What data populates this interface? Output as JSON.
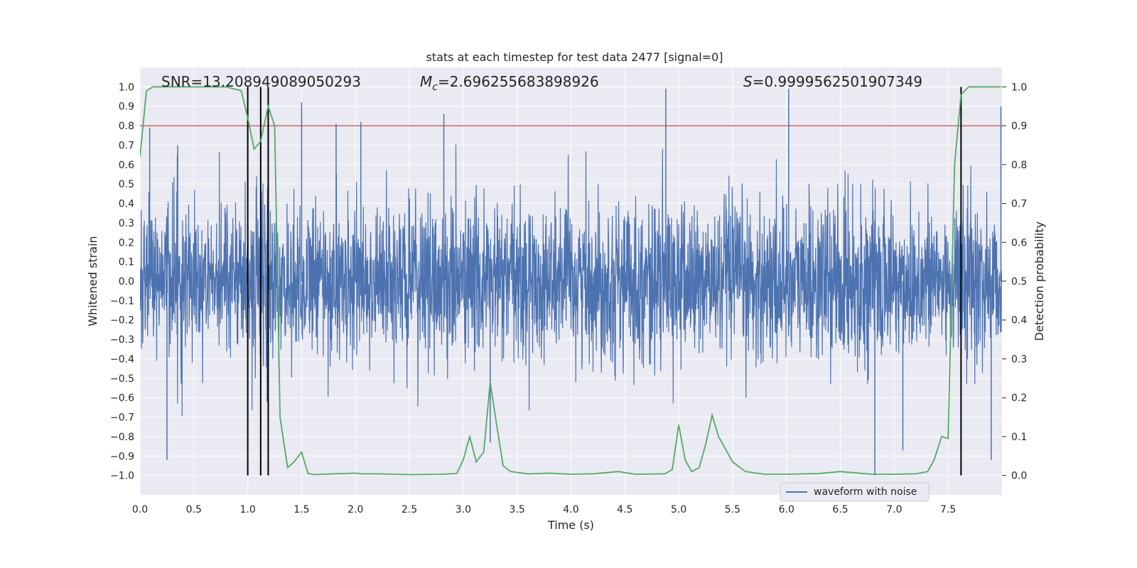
{
  "chart_data": {
    "type": "line",
    "title": "stats at each timestep for test data 2477 [signal=0]",
    "xlabel": "Time (s)",
    "ylabel": "Whitened strain",
    "ylabel_right": "Detection probability",
    "xlim": [
      0,
      8
    ],
    "ylim": [
      -1.1,
      1.1
    ],
    "ylim_right": [
      -0.05,
      1.05
    ],
    "x_ticks": [
      0.0,
      0.5,
      1.0,
      1.5,
      2.0,
      2.5,
      3.0,
      3.5,
      4.0,
      4.5,
      5.0,
      5.5,
      6.0,
      6.5,
      7.0,
      7.5
    ],
    "x_tick_labels": [
      "0.0",
      "0.5",
      "1.0",
      "1.5",
      "2.0",
      "2.5",
      "3.0",
      "3.5",
      "4.0",
      "4.5",
      "5.0",
      "5.5",
      "6.0",
      "6.5",
      "7.0",
      "7.5"
    ],
    "y_ticks": [
      -1.0,
      -0.9,
      -0.8,
      -0.7,
      -0.6,
      -0.5,
      -0.4,
      -0.3,
      -0.2,
      -0.1,
      0.0,
      0.1,
      0.2,
      0.3,
      0.4,
      0.5,
      0.6,
      0.7,
      0.8,
      0.9,
      1.0
    ],
    "y_tick_labels": [
      "−1.0",
      "−0.9",
      "−0.8",
      "−0.7",
      "−0.6",
      "−0.5",
      "−0.4",
      "−0.3",
      "−0.2",
      "−0.1",
      "0.0",
      "0.1",
      "0.2",
      "0.3",
      "0.4",
      "0.5",
      "0.6",
      "0.7",
      "0.8",
      "0.9",
      "1.0"
    ],
    "y_right_ticks": [
      0.0,
      0.1,
      0.2,
      0.3,
      0.4,
      0.5,
      0.6,
      0.7,
      0.8,
      0.9,
      1.0
    ],
    "y_right_tick_labels": [
      "0.0",
      "0.1",
      "0.2",
      "0.3",
      "0.4",
      "0.5",
      "0.6",
      "0.7",
      "0.8",
      "0.9",
      "1.0"
    ],
    "annotations": {
      "snr": "SNR=13.208949089050293",
      "mc_symbol": "M",
      "mc_subscript": "c",
      "mc_value": "=2.696255683898926",
      "s_symbol": "S",
      "s_value": "=0.9999562501907349"
    },
    "legend": {
      "label": "waveform with noise",
      "location": "lower-right"
    },
    "threshold": {
      "value": 0.8,
      "color": "#c44e52"
    },
    "detection_lines_x": [
      1.0,
      1.12,
      1.19,
      7.62
    ],
    "series": [
      {
        "name": "waveform with noise",
        "axis": "left",
        "color": "#4c72b0",
        "style": "dense noise, typical amplitude ±0.4",
        "peak_x": [
          0.09,
          0.25,
          0.35,
          1.18,
          1.5,
          1.82,
          2.05,
          2.82,
          3.25,
          4.88,
          6.02,
          6.82,
          7.08,
          7.9,
          7.99
        ],
        "peak_y": [
          0.79,
          -0.92,
          0.7,
          -0.62,
          0.92,
          0.81,
          0.82,
          0.86,
          -0.83,
          0.99,
          0.99,
          -1.0,
          -0.87,
          -0.92,
          0.9
        ]
      },
      {
        "name": "detection probability",
        "axis": "right",
        "color": "#55a868",
        "x": [
          0.0,
          0.06,
          0.12,
          0.2,
          0.4,
          0.6,
          0.8,
          0.94,
          1.0,
          1.06,
          1.12,
          1.19,
          1.25,
          1.3,
          1.37,
          1.43,
          1.5,
          1.56,
          1.62,
          1.8,
          2.0,
          2.06,
          2.2,
          2.5,
          2.8,
          2.94,
          3.0,
          3.06,
          3.12,
          3.19,
          3.25,
          3.31,
          3.37,
          3.44,
          3.6,
          3.8,
          4.0,
          4.2,
          4.44,
          4.6,
          4.87,
          4.94,
          5.0,
          5.06,
          5.12,
          5.19,
          5.25,
          5.31,
          5.37,
          5.5,
          5.62,
          5.8,
          6.0,
          6.3,
          6.5,
          6.8,
          7.0,
          7.2,
          7.31,
          7.37,
          7.44,
          7.5,
          7.56,
          7.62,
          7.69,
          7.75,
          7.81,
          7.9,
          7.99
        ],
        "y": [
          0.82,
          0.99,
          1.0,
          1.0,
          1.0,
          1.0,
          1.0,
          0.99,
          0.92,
          0.84,
          0.86,
          0.95,
          0.9,
          0.15,
          0.02,
          0.035,
          0.06,
          0.005,
          0.002,
          0.004,
          0.006,
          0.004,
          0.004,
          0.002,
          0.003,
          0.005,
          0.04,
          0.1,
          0.035,
          0.06,
          0.24,
          0.13,
          0.025,
          0.01,
          0.004,
          0.006,
          0.003,
          0.004,
          0.01,
          0.003,
          0.004,
          0.015,
          0.13,
          0.04,
          0.01,
          0.02,
          0.08,
          0.155,
          0.1,
          0.035,
          0.01,
          0.003,
          0.003,
          0.005,
          0.01,
          0.003,
          0.003,
          0.004,
          0.01,
          0.04,
          0.1,
          0.095,
          0.8,
          0.98,
          1.0,
          1.0,
          1.0,
          1.0,
          1.0
        ]
      }
    ],
    "colors": {
      "plot_bg": "#eaeaf2",
      "grid": "#ffffff",
      "waveform": "#4c72b0",
      "probability": "#55a868",
      "threshold": "#c44e52",
      "event_lines": "#000000"
    }
  }
}
